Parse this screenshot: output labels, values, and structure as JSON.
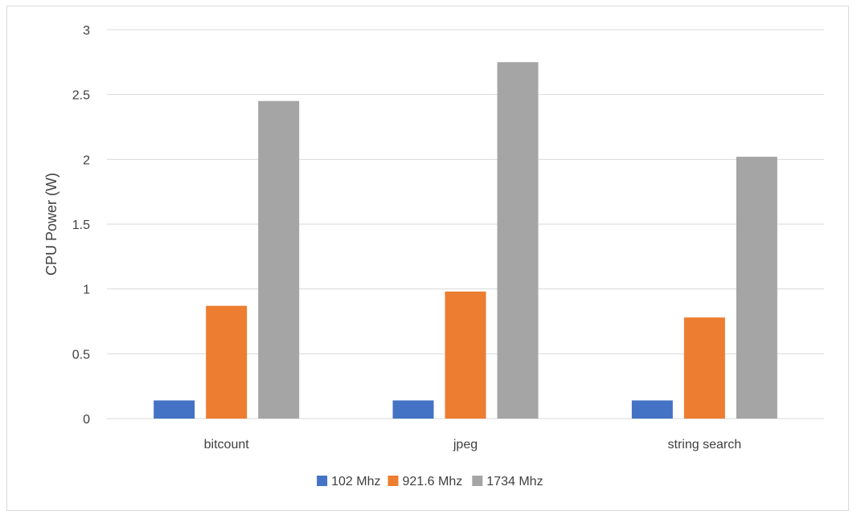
{
  "chart_data": {
    "type": "bar",
    "title": "",
    "xlabel": "",
    "ylabel": "CPU Power (W)",
    "ylim": [
      0,
      3
    ],
    "yticks": [
      "0",
      "0.5",
      "1",
      "1.5",
      "2",
      "2.5",
      "3"
    ],
    "categories": [
      "bitcount",
      "jpeg",
      "string search"
    ],
    "series": [
      {
        "name": "102 Mhz",
        "color": "#4472C4",
        "values": [
          0.14,
          0.14,
          0.14
        ]
      },
      {
        "name": "921.6 Mhz",
        "color": "#ED7D31",
        "values": [
          0.87,
          0.98,
          0.78
        ]
      },
      {
        "name": "1734 Mhz",
        "color": "#A5A5A5",
        "values": [
          2.45,
          2.75,
          2.02
        ]
      }
    ],
    "grid": true,
    "legend": "bottom"
  }
}
